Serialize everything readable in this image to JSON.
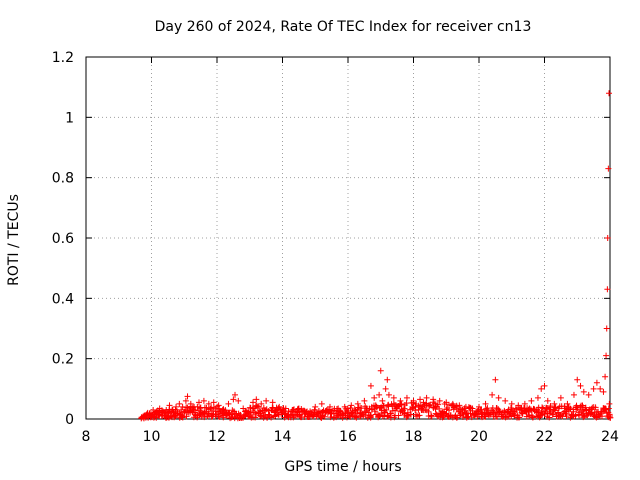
{
  "chart_data": {
    "type": "scatter",
    "title": "Day 260 of 2024, Rate Of TEC Index for receiver cn13",
    "xlabel": "GPS time / hours",
    "ylabel": "ROTI / TECUs",
    "xlim": [
      8,
      24
    ],
    "ylim": [
      0,
      1.2
    ],
    "x_ticks": [
      8,
      10,
      12,
      14,
      16,
      18,
      20,
      22,
      24
    ],
    "y_ticks": [
      0,
      0.2,
      0.4,
      0.6,
      0.8,
      1,
      1.2
    ],
    "x_tick_labels": [
      "8",
      "10",
      "12",
      "14",
      "16",
      "18",
      "20",
      "22",
      "24"
    ],
    "y_tick_labels": [
      "0",
      "0.2",
      "0.4",
      "0.6",
      "0.8",
      "1",
      "1.2"
    ],
    "grid": true,
    "marker": "+",
    "series": [
      {
        "name": "ROTI",
        "color": "#ff0000",
        "points": [
          [
            9.75,
            0.008
          ],
          [
            9.85,
            0.015
          ],
          [
            9.95,
            0.02
          ],
          [
            10.05,
            0.03
          ],
          [
            10.15,
            0.025
          ],
          [
            10.25,
            0.035
          ],
          [
            10.35,
            0.02
          ],
          [
            10.45,
            0.03
          ],
          [
            10.55,
            0.045
          ],
          [
            10.65,
            0.03
          ],
          [
            10.75,
            0.04
          ],
          [
            10.85,
            0.05
          ],
          [
            10.95,
            0.04
          ],
          [
            11.05,
            0.06
          ],
          [
            11.1,
            0.075
          ],
          [
            11.2,
            0.05
          ],
          [
            11.3,
            0.04
          ],
          [
            11.45,
            0.055
          ],
          [
            11.6,
            0.06
          ],
          [
            11.75,
            0.05
          ],
          [
            11.9,
            0.055
          ],
          [
            12.05,
            0.045
          ],
          [
            12.2,
            0.03
          ],
          [
            12.35,
            0.05
          ],
          [
            12.5,
            0.065
          ],
          [
            12.55,
            0.08
          ],
          [
            12.65,
            0.06
          ],
          [
            12.8,
            0.035
          ],
          [
            12.95,
            0.025
          ],
          [
            13.1,
            0.055
          ],
          [
            13.2,
            0.065
          ],
          [
            13.35,
            0.05
          ],
          [
            13.5,
            0.06
          ],
          [
            13.7,
            0.055
          ],
          [
            13.9,
            0.04
          ],
          [
            14.1,
            0.035
          ],
          [
            14.3,
            0.03
          ],
          [
            14.5,
            0.035
          ],
          [
            14.75,
            0.025
          ],
          [
            15.0,
            0.04
          ],
          [
            15.2,
            0.05
          ],
          [
            15.45,
            0.04
          ],
          [
            15.7,
            0.035
          ],
          [
            15.9,
            0.04
          ],
          [
            16.1,
            0.045
          ],
          [
            16.3,
            0.05
          ],
          [
            16.5,
            0.06
          ],
          [
            16.7,
            0.11
          ],
          [
            16.8,
            0.07
          ],
          [
            16.95,
            0.08
          ],
          [
            17.0,
            0.16
          ],
          [
            17.05,
            0.06
          ],
          [
            17.15,
            0.1
          ],
          [
            17.2,
            0.13
          ],
          [
            17.25,
            0.08
          ],
          [
            17.4,
            0.07
          ],
          [
            17.6,
            0.06
          ],
          [
            17.8,
            0.07
          ],
          [
            18.0,
            0.06
          ],
          [
            18.2,
            0.065
          ],
          [
            18.4,
            0.07
          ],
          [
            18.6,
            0.065
          ],
          [
            18.8,
            0.06
          ],
          [
            19.0,
            0.055
          ],
          [
            19.2,
            0.05
          ],
          [
            19.4,
            0.045
          ],
          [
            19.6,
            0.04
          ],
          [
            19.8,
            0.035
          ],
          [
            20.0,
            0.04
          ],
          [
            20.2,
            0.05
          ],
          [
            20.4,
            0.08
          ],
          [
            20.5,
            0.13
          ],
          [
            20.6,
            0.07
          ],
          [
            20.8,
            0.06
          ],
          [
            21.0,
            0.05
          ],
          [
            21.2,
            0.045
          ],
          [
            21.4,
            0.05
          ],
          [
            21.6,
            0.06
          ],
          [
            21.8,
            0.07
          ],
          [
            21.9,
            0.1
          ],
          [
            22.0,
            0.11
          ],
          [
            22.1,
            0.06
          ],
          [
            22.3,
            0.05
          ],
          [
            22.5,
            0.07
          ],
          [
            22.7,
            0.05
          ],
          [
            22.9,
            0.08
          ],
          [
            23.0,
            0.13
          ],
          [
            23.1,
            0.11
          ],
          [
            23.2,
            0.09
          ],
          [
            23.35,
            0.08
          ],
          [
            23.5,
            0.1
          ],
          [
            23.6,
            0.12
          ],
          [
            23.7,
            0.1
          ],
          [
            23.8,
            0.09
          ],
          [
            23.85,
            0.14
          ],
          [
            23.88,
            0.21
          ],
          [
            23.9,
            0.3
          ],
          [
            23.92,
            0.43
          ],
          [
            23.93,
            0.6
          ],
          [
            23.95,
            0.83
          ],
          [
            23.97,
            1.08
          ],
          [
            23.98,
            0.05
          ],
          [
            24.0,
            0.01
          ]
        ],
        "band": {
          "x_start": 9.7,
          "x_end": 24.0,
          "x_step": 0.05,
          "baseline_points": [
            [
              9.7,
              0.01
            ],
            [
              10.0,
              0.025
            ],
            [
              11.0,
              0.04
            ],
            [
              12.0,
              0.04
            ],
            [
              12.8,
              0.02
            ],
            [
              13.0,
              0.045
            ],
            [
              14.0,
              0.035
            ],
            [
              15.0,
              0.03
            ],
            [
              16.0,
              0.035
            ],
            [
              17.5,
              0.05
            ],
            [
              18.5,
              0.055
            ],
            [
              19.5,
              0.04
            ],
            [
              20.0,
              0.035
            ],
            [
              21.0,
              0.035
            ],
            [
              22.0,
              0.04
            ],
            [
              23.0,
              0.045
            ],
            [
              24.0,
              0.04
            ]
          ]
        }
      }
    ]
  }
}
